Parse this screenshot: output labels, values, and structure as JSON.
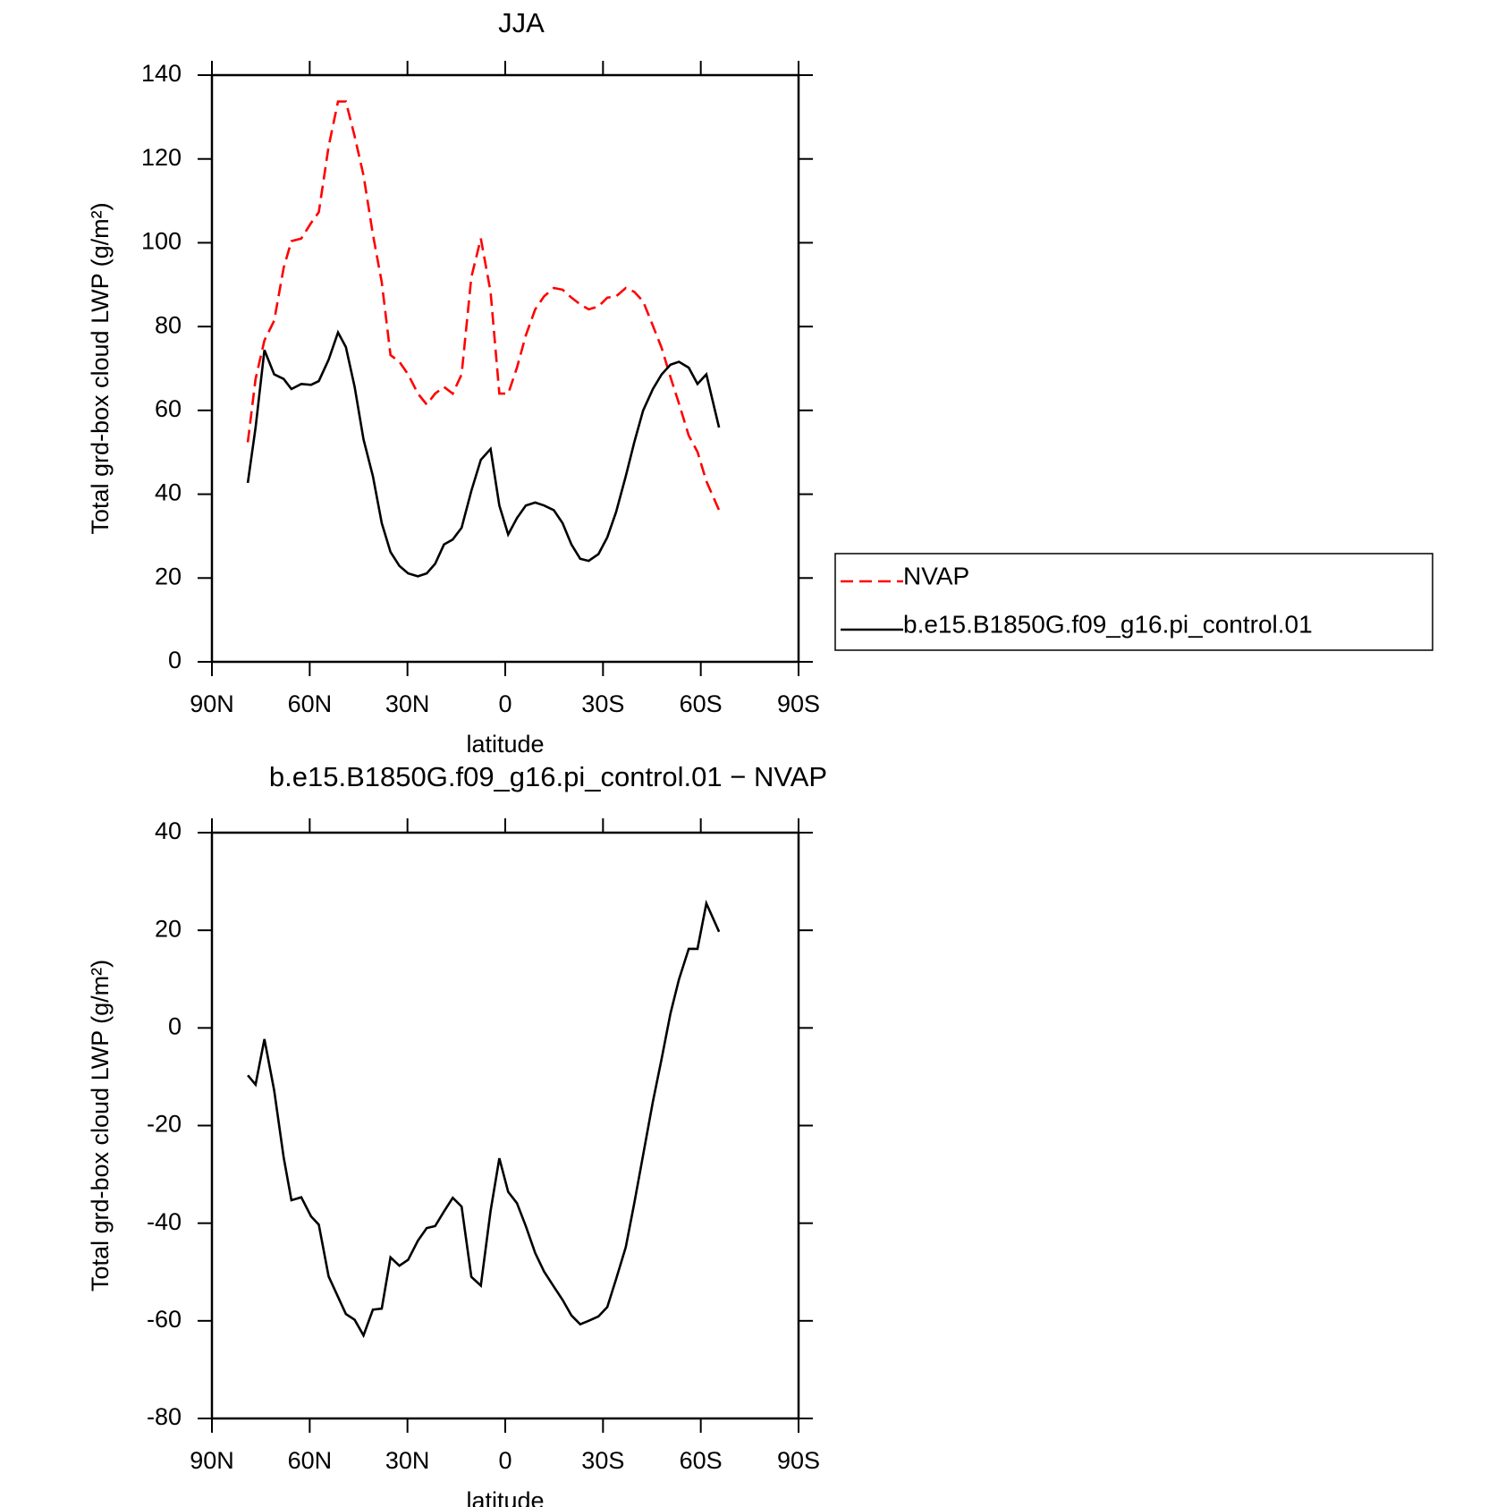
{
  "chart_data": [
    {
      "type": "line",
      "title": "JJA",
      "xlabel": "latitude",
      "ylabel": "Total grd-box cloud LWP (g/m²)",
      "x": [
        79.0,
        76.6,
        73.9,
        70.9,
        68.0,
        65.6,
        62.6,
        59.6,
        57.2,
        54.2,
        51.3,
        48.9,
        46.2,
        43.5,
        40.6,
        37.9,
        35.2,
        32.5,
        29.8,
        26.8,
        24.1,
        21.5,
        18.8,
        16.1,
        13.4,
        10.4,
        7.5,
        4.5,
        1.8,
        -0.9,
        -3.6,
        -6.3,
        -9.2,
        -11.9,
        -14.9,
        -17.6,
        -20.3,
        -23.0,
        -25.6,
        -28.6,
        -31.3,
        -34.0,
        -37.0,
        -39.6,
        -42.3,
        -45.3,
        -48.0,
        -50.7,
        -53.3,
        -56.3,
        -59.0,
        -61.7,
        -65.6
      ],
      "series": [
        {
          "name": "NVAP",
          "color": "#ff0000",
          "dash": true,
          "values": [
            52.4,
            67.5,
            76.7,
            81.4,
            94,
            100.4,
            101,
            104.7,
            107.3,
            123,
            133.7,
            133.7,
            125.4,
            116.1,
            102,
            90.6,
            73.2,
            71.6,
            68.6,
            64,
            61.4,
            64,
            65.6,
            64,
            68.6,
            91.8,
            101,
            88.3,
            64,
            64,
            70.2,
            77.9,
            84.1,
            87.2,
            89.2,
            88.8,
            86.9,
            85.3,
            84.1,
            84.8,
            86.9,
            87.2,
            89.2,
            88.3,
            86,
            80.2,
            74.9,
            67.9,
            61.7,
            54,
            50.1,
            43.1,
            36.2
          ]
        },
        {
          "name": "b.e15.B1850G.f09_g16.pi_control.01",
          "color": "#000000",
          "dash": false,
          "values": [
            42.7,
            55.9,
            74.4,
            68.6,
            67.5,
            65.1,
            66.3,
            66.1,
            67,
            72.1,
            78.6,
            75.1,
            65.6,
            53.1,
            44.3,
            33.1,
            26.2,
            22.9,
            21.1,
            20.4,
            21.1,
            23.4,
            28,
            29.2,
            32,
            40.8,
            48.2,
            50.8,
            37.3,
            30.4,
            34.3,
            37.3,
            38,
            37.3,
            36.2,
            33.1,
            28,
            24.6,
            24.1,
            25.7,
            29.7,
            35.7,
            44.3,
            52.4,
            60,
            65.1,
            68.6,
            70.9,
            71.6,
            70.2,
            66.3,
            68.6,
            55.9
          ]
        }
      ],
      "xlim": [
        90,
        -90
      ],
      "ylim": [
        0,
        140
      ],
      "xticks": [
        {
          "value": 90,
          "label": "90N"
        },
        {
          "value": 60,
          "label": "60N"
        },
        {
          "value": 30,
          "label": "30N"
        },
        0,
        {
          "value": -30,
          "label": "30S"
        },
        {
          "value": -60,
          "label": "60S"
        },
        {
          "value": -90,
          "label": "90S"
        }
      ],
      "yticks": [
        0,
        20,
        40,
        60,
        80,
        100,
        120,
        140
      ],
      "legend": "outside-right"
    },
    {
      "type": "line",
      "title": "b.e15.B1850G.f09_g16.pi_control.01 − NVAP",
      "xlabel": "latitude",
      "ylabel": "Total grd-box cloud LWP (g/m²)",
      "x": [
        79.0,
        76.6,
        73.9,
        70.9,
        68.0,
        65.6,
        62.6,
        59.6,
        57.2,
        54.2,
        51.3,
        48.9,
        46.2,
        43.5,
        40.6,
        37.9,
        35.2,
        32.5,
        29.8,
        26.8,
        24.1,
        21.5,
        18.8,
        16.1,
        13.4,
        10.4,
        7.5,
        4.5,
        1.8,
        -0.9,
        -3.6,
        -6.3,
        -9.2,
        -11.9,
        -14.9,
        -17.6,
        -20.3,
        -23.0,
        -25.6,
        -28.6,
        -31.3,
        -34.0,
        -37.0,
        -39.6,
        -42.3,
        -45.3,
        -48.0,
        -50.7,
        -53.3,
        -56.3,
        -59.0,
        -61.7,
        -65.6
      ],
      "series": [
        {
          "color": "#000000",
          "dash": false,
          "values": [
            -9.7,
            -11.6,
            -2.3,
            -12.8,
            -26.5,
            -35.3,
            -34.7,
            -38.6,
            -40.3,
            -50.9,
            -55.1,
            -58.6,
            -59.8,
            -63,
            -57.7,
            -57.5,
            -47,
            -48.7,
            -47.5,
            -43.6,
            -41,
            -40.6,
            -37.6,
            -34.8,
            -36.6,
            -51,
            -52.8,
            -37.5,
            -26.7,
            -33.6,
            -35.9,
            -40.6,
            -46.1,
            -49.9,
            -53,
            -55.7,
            -58.9,
            -60.7,
            -60,
            -59.1,
            -57.2,
            -51.5,
            -44.9,
            -35.9,
            -26,
            -15.1,
            -6.3,
            3,
            9.9,
            16.2,
            16.2,
            25.5,
            19.7
          ]
        }
      ],
      "xlim": [
        90,
        -90
      ],
      "ylim": [
        -80,
        40
      ],
      "xticks": [
        {
          "value": 90,
          "label": "90N"
        },
        {
          "value": 60,
          "label": "60N"
        },
        {
          "value": 30,
          "label": "30N"
        },
        0,
        {
          "value": -30,
          "label": "30S"
        },
        {
          "value": -60,
          "label": "60S"
        },
        {
          "value": -90,
          "label": "90S"
        }
      ],
      "yticks": [
        -80,
        -60,
        -40,
        -20,
        0,
        20,
        40
      ]
    }
  ]
}
